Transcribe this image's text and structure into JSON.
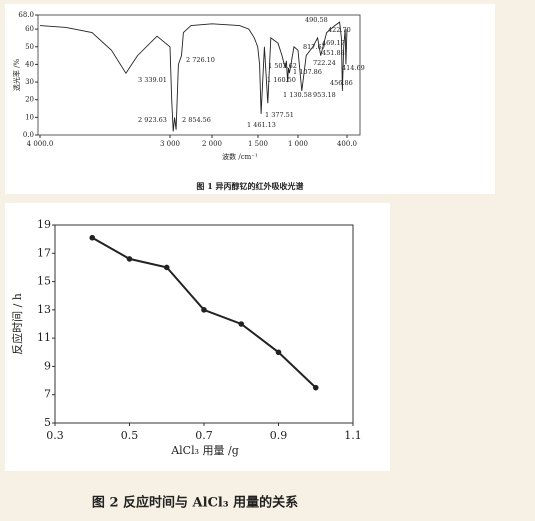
{
  "chart_data": [
    {
      "type": "line",
      "title": "图 1   异丙醇钇的红外吸收光谱",
      "xlabel": "波数 /cm⁻¹",
      "ylabel": "透光率 /%",
      "x": [
        4000,
        3800,
        3600,
        3450,
        3339,
        3250,
        3100,
        3000,
        2960,
        2923,
        2890,
        2854,
        2800,
        2726,
        2680,
        2500,
        2000,
        1700,
        1600,
        1540,
        1503,
        1480,
        1461,
        1420,
        1377,
        1340,
        1250,
        1200,
        1160,
        1145,
        1130,
        1120,
        1107,
        1050,
        1000,
        953,
        900,
        817,
        760,
        722,
        650,
        550,
        490,
        469,
        456,
        440,
        422,
        414,
        400
      ],
      "values": [
        62,
        61,
        58,
        48,
        35,
        45,
        56,
        50,
        20,
        2,
        10,
        3,
        40,
        45,
        58,
        62,
        63,
        62,
        60,
        55,
        50,
        40,
        12,
        50,
        18,
        55,
        52,
        45,
        38,
        42,
        30,
        38,
        35,
        50,
        48,
        25,
        45,
        50,
        55,
        45,
        58,
        62,
        64,
        55,
        25,
        50,
        60,
        40,
        60
      ],
      "color": "#222222",
      "xlim": [
        4000,
        400
      ],
      "xticks": [
        {
          "value": 4000,
          "label": "4 000.0"
        },
        {
          "value": 3000,
          "label": "3 000"
        },
        {
          "value": 2000,
          "label": "2 000"
        },
        {
          "value": 1500,
          "label": "1 500"
        },
        {
          "value": 1000,
          "label": "1 000"
        },
        {
          "value": 400,
          "label": "400.0"
        }
      ],
      "ylim": [
        0,
        68
      ],
      "yticks": [
        {
          "value": 0,
          "label": "0.0"
        },
        10,
        20,
        30,
        40,
        50,
        60,
        {
          "value": 68,
          "label": "68.0"
        }
      ],
      "annotations": [
        "3 339.01",
        "2 923.63",
        "2 854.56",
        "2 726.10",
        "1 461.13",
        "1 377.51",
        "1 503.62",
        "1 160.50",
        "1 130.58",
        "1 107.86",
        "953.18",
        "817.67",
        "722.24",
        "490.58",
        "469.17",
        "451.88",
        "456.86",
        "422.70",
        "414.69"
      ]
    },
    {
      "type": "line",
      "title": "图 2   反应时间与 AlCl₃ 用量的关系",
      "xlabel": "AlCl₃ 用量 /g",
      "ylabel": "反应时间 / h",
      "x": [
        0.4,
        0.5,
        0.6,
        0.7,
        0.8,
        0.9,
        1.0
      ],
      "values": [
        18.1,
        16.6,
        16,
        13,
        12,
        10,
        7.5
      ],
      "color": "#222222",
      "markers": true,
      "xlim": [
        0.3,
        1.1
      ],
      "xticks": [
        0.3,
        0.5,
        0.7,
        0.9,
        1.1
      ],
      "ylim": [
        5,
        19
      ],
      "yticks": [
        5,
        7,
        9,
        11,
        13,
        15,
        17,
        19
      ]
    }
  ]
}
